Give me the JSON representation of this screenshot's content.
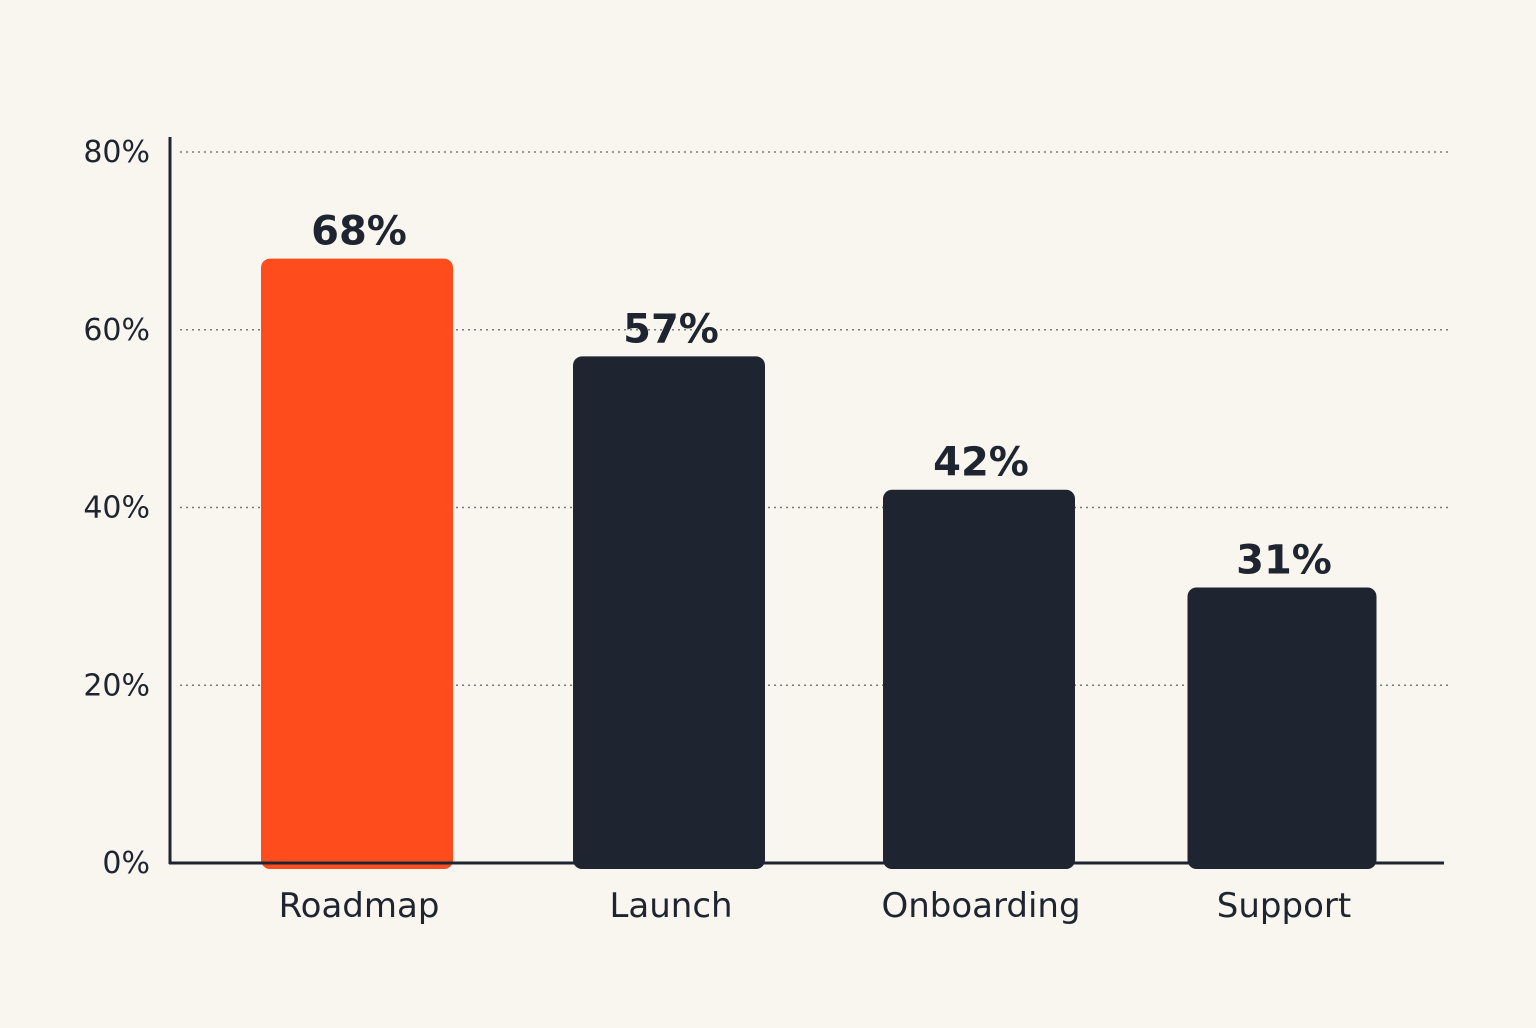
{
  "chart_data": {
    "type": "bar",
    "title": "",
    "xlabel": "",
    "ylabel": "",
    "categories": [
      "Roadmap",
      "Launch",
      "Onboarding",
      "Support"
    ],
    "values": [
      68,
      57,
      42,
      31
    ],
    "value_labels": [
      "68%",
      "57%",
      "42%",
      "31%"
    ],
    "ylim": [
      0,
      80
    ],
    "yticks": [
      0,
      20,
      40,
      60,
      80
    ],
    "ytick_labels": [
      "0%",
      "20%",
      "40%",
      "60%",
      "80%"
    ],
    "grid": true,
    "grid_style": "dotted",
    "highlight_index": 0,
    "colors": {
      "highlight": "#ff4c1c",
      "bar": "#1e2430",
      "axis": "#1e2430",
      "grid": "#7a7a7a",
      "background": "#f9f6ef"
    }
  }
}
